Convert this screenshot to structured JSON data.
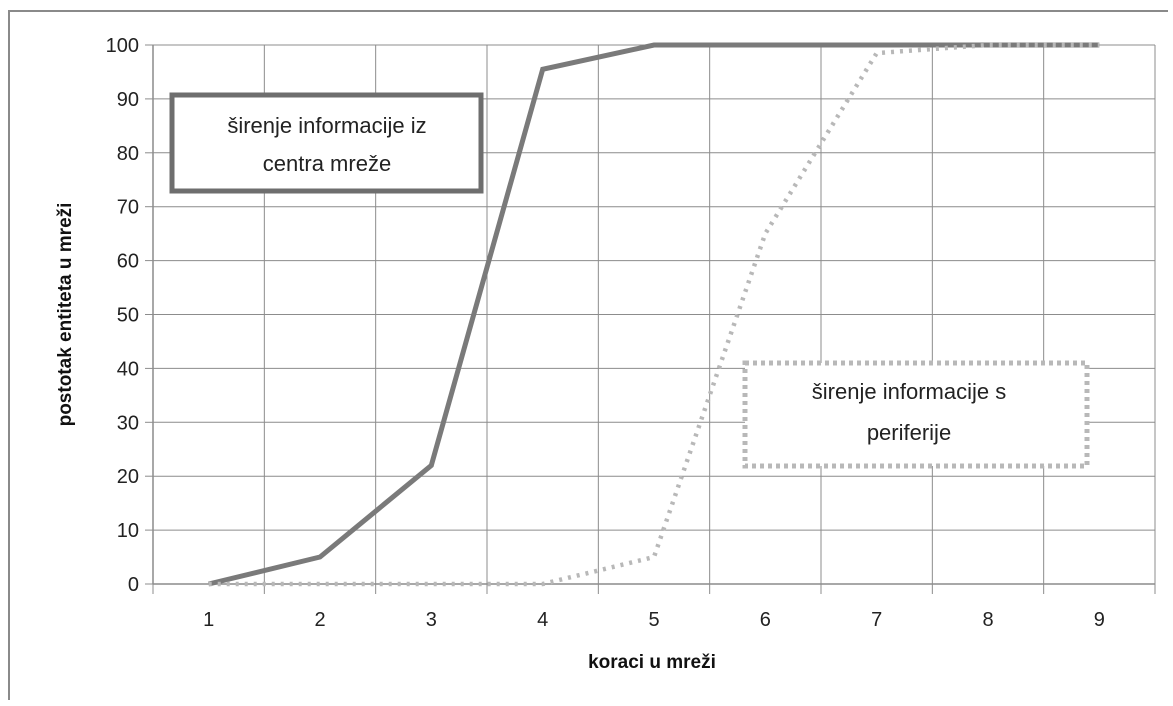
{
  "chart_data": {
    "type": "line",
    "xlabel": "koraci u mreži",
    "ylabel": "postotak entiteta u mreži",
    "x": [
      1,
      2,
      3,
      4,
      5,
      6,
      7,
      8,
      9
    ],
    "ylim": [
      0,
      100
    ],
    "yticks": [
      0,
      10,
      20,
      30,
      40,
      50,
      60,
      70,
      80,
      90,
      100
    ],
    "xtick_labels": [
      "1",
      "2",
      "3",
      "4",
      "5",
      "6",
      "7",
      "8",
      "9"
    ],
    "ytick_labels": [
      "0",
      "10",
      "20",
      "30",
      "40",
      "50",
      "60",
      "70",
      "80",
      "90",
      "100"
    ],
    "grid": true,
    "series": [
      {
        "name": "širenje informacije iz centra mreže",
        "values": [
          0,
          5,
          22,
          95.5,
          100,
          100,
          100,
          100,
          100
        ],
        "style": "solid",
        "color": "#7a7a7a"
      },
      {
        "name": "širenje informacije s periferije",
        "values": [
          0,
          0,
          0,
          0,
          5,
          65,
          98.5,
          100,
          100
        ],
        "style": "dotted",
        "color": "#b8b8b8"
      }
    ],
    "callouts": [
      {
        "lines": [
          "širenje informacije iz",
          "centra mreže"
        ],
        "series": 0
      },
      {
        "lines": [
          "širenje informacije s",
          "periferije"
        ],
        "series": 1
      }
    ]
  }
}
